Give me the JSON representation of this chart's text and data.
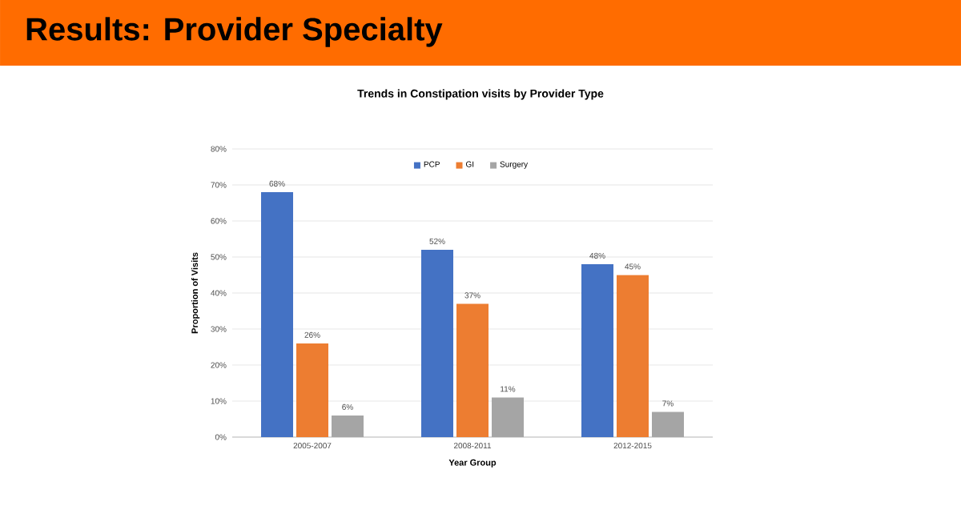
{
  "chart_data": {
    "type": "bar",
    "title": "Results: Provider Specialty",
    "subtitle": "Trends in Constipation visits by Provider Type",
    "xlabel": "Year Group",
    "ylabel": "Proportion of Visits",
    "categories": [
      "2005-2007",
      "2008-2011",
      "2012-2015"
    ],
    "series": [
      {
        "name": "PCP",
        "color": "#4472c4",
        "values": [
          68,
          52,
          48
        ],
        "value_labels": [
          "68%",
          "52%",
          "48%"
        ]
      },
      {
        "name": "GI",
        "color": "#ed7d31",
        "values": [
          26,
          37,
          45
        ],
        "value_labels": [
          "26%",
          "37%",
          "45%"
        ]
      },
      {
        "name": "Surgery",
        "color": "#a5a5a5",
        "values": [
          6,
          11,
          7
        ],
        "value_labels": [
          "6%",
          "11%",
          "7%"
        ]
      }
    ],
    "ylim": [
      0,
      80
    ],
    "yticks": [
      {
        "value": 0,
        "label": "0%"
      },
      {
        "value": 10,
        "label": "10%"
      },
      {
        "value": 20,
        "label": "20%"
      },
      {
        "value": 30,
        "label": "30%"
      },
      {
        "value": 40,
        "label": "40%"
      },
      {
        "value": 50,
        "label": "50%"
      },
      {
        "value": 60,
        "label": "60%"
      },
      {
        "value": 70,
        "label": "70%"
      },
      {
        "value": 80,
        "label": "80%"
      }
    ],
    "grid": "y",
    "legend": "top"
  }
}
